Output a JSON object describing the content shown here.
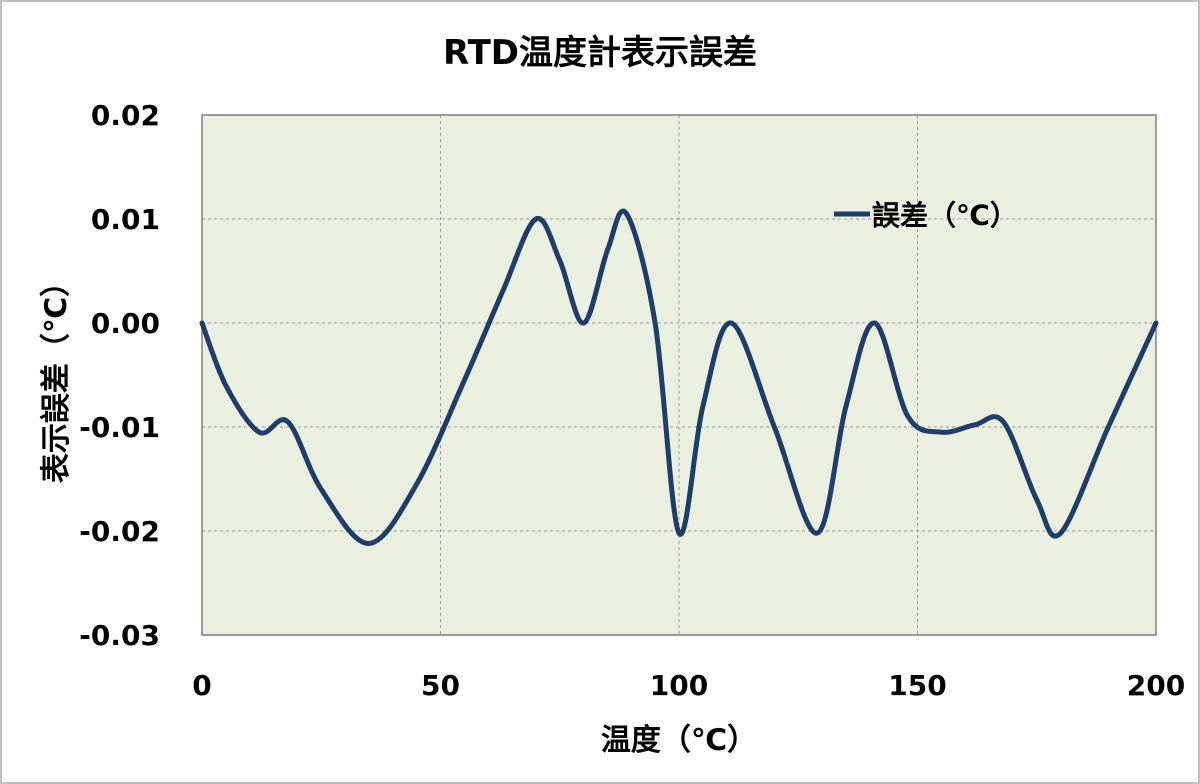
{
  "chart_data": {
    "type": "line",
    "title": "RTD温度計表示誤差",
    "xlabel": "温度（℃）",
    "ylabel": "表示誤差（℃）",
    "xlim": [
      0,
      200
    ],
    "ylim": [
      -0.03,
      0.02
    ],
    "x_ticks": [
      "0",
      "50",
      "100",
      "150",
      "200"
    ],
    "y_ticks": [
      "0.02",
      "0.01",
      "0.00",
      "-0.01",
      "-0.02",
      "-0.03"
    ],
    "x_tick_values": [
      0,
      50,
      100,
      150,
      200
    ],
    "y_tick_values": [
      0.02,
      0.01,
      0.0,
      -0.01,
      -0.02,
      -0.03
    ],
    "grid": true,
    "legend_position": "top-right",
    "colors": {
      "series": "#1f3d6b",
      "plot_bg": "#ebefdf",
      "grid": "#9a9a9a"
    },
    "series": [
      {
        "name": "誤差（℃）",
        "x": [
          0,
          5,
          12,
          18,
          25,
          35,
          45,
          55,
          63,
          70,
          75,
          80,
          85,
          89,
          95,
          100,
          105,
          111,
          120,
          129,
          135,
          141,
          148,
          155,
          162,
          168,
          175,
          180,
          190,
          200
        ],
        "y": [
          0.0,
          -0.006,
          -0.0105,
          -0.0095,
          -0.016,
          -0.0212,
          -0.0155,
          -0.0055,
          0.003,
          0.01,
          0.006,
          0.0,
          0.007,
          0.0105,
          0.0,
          -0.0202,
          -0.008,
          0.0,
          -0.01,
          -0.0202,
          -0.008,
          0.0,
          -0.009,
          -0.0105,
          -0.0098,
          -0.0095,
          -0.017,
          -0.0202,
          -0.01,
          0.0
        ]
      }
    ]
  }
}
